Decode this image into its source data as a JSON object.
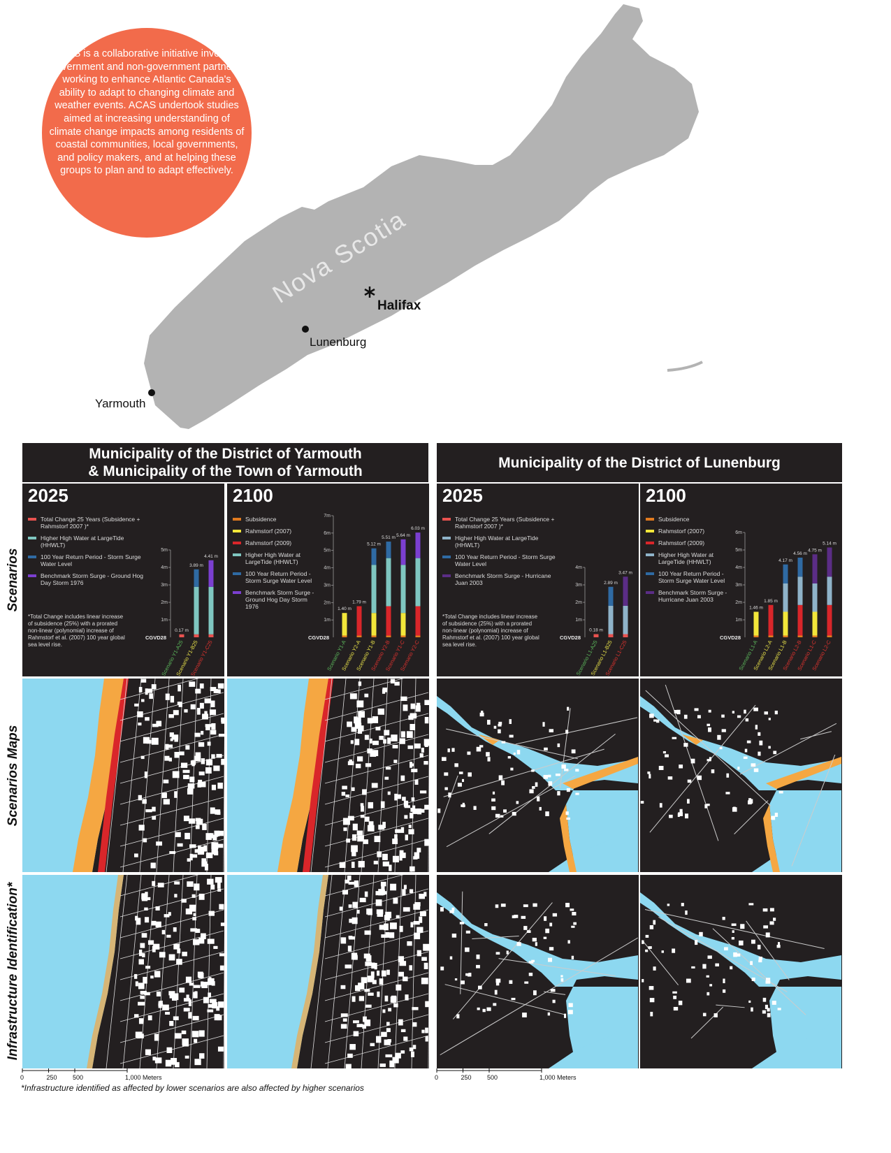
{
  "intro": "ACAS is a collaborative initiative involving government and non-government partners, working to enhance Atlantic Canada's ability to adapt to changing climate and weather events. ACAS undertook studies aimed at increasing understanding of climate change impacts among residents of coastal communities, local governments, and policy makers, and at helping these groups to plan and to adapt effectively.",
  "region_label": "Nova Scotia",
  "city_labels": [
    "Halifax",
    "Lunenburg",
    "Yarmouth"
  ],
  "sections": [
    "Municipality of the District of Yarmouth\n& Municipality of the Town of Yarmouth",
    "Municipality of the District of Lunenburg"
  ],
  "row_labels": [
    "Scenarios",
    "Scenarios Maps",
    "Infrastructure Identification*"
  ],
  "scale_ticks": [
    {
      "value": 0,
      "label": "0"
    },
    {
      "value": 250,
      "label": "250"
    },
    {
      "value": 500,
      "label": "500"
    },
    {
      "value": 1000,
      "label": "1,000 Meters"
    }
  ],
  "footnote": "*Infrastructure identified as affected by lower scenarios are also affected by higher scenarios",
  "chart_data": [
    {
      "type": "bar",
      "stacked": true,
      "title": "2025",
      "base_label": "CGVD28",
      "categories": [
        "Scenario Y1-A25",
        "Scenario Y1-B25",
        "Scenario Y1-C25"
      ],
      "category_colors": [
        "#5cb85c",
        "#e8e24a",
        "#e0332f"
      ],
      "series": [
        {
          "name": "Total Change 25 Years (Subsidence + Rahmstorf 2007 )*",
          "color": "#e8524f",
          "values": [
            0.17,
            0.17,
            0.17
          ]
        },
        {
          "name": "Higher High Water at LargeTide (HHWLT)",
          "color": "#7fc6c0",
          "values": [
            null,
            2.72,
            2.72
          ]
        },
        {
          "name": "100 Year Return Period - Storm Surge Water Level",
          "color": "#2f6aa3",
          "values": [
            null,
            1.0,
            null
          ]
        },
        {
          "name": "Benchmark Storm Surge - Ground Hog Day Storm 1976",
          "color": "#7b3fd0",
          "values": [
            null,
            null,
            1.52
          ]
        }
      ],
      "totals": [
        0.17,
        3.89,
        4.41
      ],
      "total_labels": [
        "0.17 m",
        "3.89 m",
        "4.41 m"
      ],
      "ylim": [
        0,
        5
      ],
      "yticks": [
        {
          "value": 1,
          "label": "1m"
        },
        {
          "value": 2,
          "label": "2m"
        },
        {
          "value": 3,
          "label": "3m"
        },
        {
          "value": 4,
          "label": "4m"
        },
        {
          "value": 5,
          "label": "5m"
        }
      ],
      "note": "*Total Change includes linear increase of subsidence (25%) with a prorated non-linear (polynomial) increase of Rahmstorf et al. (2007) 100 year global sea level rise."
    },
    {
      "type": "bar",
      "stacked": true,
      "title": "2100",
      "base_label": "CGVD28",
      "categories": [
        "Scenario Y1-A",
        "Scenario Y2-A",
        "Scenario Y1-B",
        "Scenario Y2-B",
        "Scenario Y1-C",
        "Scenario Y2-C"
      ],
      "category_colors": [
        "#5cb85c",
        "#e8e24a",
        "#e8e24a",
        "#e0332f",
        "#e0332f",
        "#e0332f"
      ],
      "series": [
        {
          "name": "Subsidence",
          "color": "#e07a1f",
          "values": [
            0.1,
            0.1,
            0.1,
            0.1,
            0.1,
            0.1
          ]
        },
        {
          "name": "Rahmstorf (2007)",
          "color": "#f2e63a",
          "values": [
            1.3,
            null,
            1.3,
            null,
            1.3,
            null
          ]
        },
        {
          "name": "Rahmstorf (2009)",
          "color": "#d9262a",
          "values": [
            null,
            1.69,
            null,
            1.69,
            null,
            1.69
          ]
        },
        {
          "name": "Higher High Water at LargeTide (HHWLT)",
          "color": "#7fc6c0",
          "values": [
            null,
            null,
            2.77,
            2.77,
            2.77,
            2.77
          ]
        },
        {
          "name": "100 Year Return Period - Storm Surge Water Level",
          "color": "#2f6aa3",
          "values": [
            null,
            null,
            0.95,
            0.95,
            null,
            null
          ]
        },
        {
          "name": "Benchmark Storm Surge - Ground Hog Day Storm 1976",
          "color": "#7b3fd0",
          "values": [
            null,
            null,
            null,
            null,
            1.47,
            1.47
          ]
        }
      ],
      "totals": [
        1.4,
        1.79,
        5.12,
        5.51,
        5.64,
        6.03
      ],
      "total_labels": [
        "1.40 m",
        "1.79 m",
        "5.12 m",
        "5.51 m",
        "5.64 m",
        "6.03 m"
      ],
      "ylim": [
        0,
        7
      ],
      "yticks": [
        {
          "value": 1,
          "label": "1m"
        },
        {
          "value": 2,
          "label": "2m"
        },
        {
          "value": 3,
          "label": "3m"
        },
        {
          "value": 4,
          "label": "4m"
        },
        {
          "value": 5,
          "label": "5m"
        },
        {
          "value": 6,
          "label": "6m"
        },
        {
          "value": 7,
          "label": "7m"
        }
      ]
    },
    {
      "type": "bar",
      "stacked": true,
      "title": "2025",
      "base_label": "CGVD28",
      "categories": [
        "Scenario L1-A25",
        "Scenario L1-B25",
        "Scenario L1-C25"
      ],
      "category_colors": [
        "#5cb85c",
        "#e8e24a",
        "#e0332f"
      ],
      "series": [
        {
          "name": "Total Change 25 Years (Subsidence + Rahmstorf 2007 )*",
          "color": "#e8524f",
          "values": [
            0.18,
            0.18,
            0.18
          ]
        },
        {
          "name": "Higher High Water at LargeTide (HHWLT)",
          "color": "#8fb3c9",
          "values": [
            null,
            1.62,
            1.62
          ]
        },
        {
          "name": "100 Year Return Period - Storm Surge Water Level",
          "color": "#2f6aa3",
          "values": [
            null,
            1.09,
            null
          ]
        },
        {
          "name": "Benchmark Storm Surge - Hurricane Juan 2003",
          "color": "#5b2d86",
          "values": [
            null,
            null,
            1.67
          ]
        }
      ],
      "totals": [
        0.18,
        2.89,
        3.47
      ],
      "total_labels": [
        "0.18 m",
        "2.89 m",
        "3.47 m"
      ],
      "ylim": [
        0,
        4
      ],
      "yticks": [
        {
          "value": 1,
          "label": "1m"
        },
        {
          "value": 2,
          "label": "2m"
        },
        {
          "value": 3,
          "label": "3m"
        },
        {
          "value": 4,
          "label": "4m"
        }
      ],
      "note": "*Total Change includes linear increase of subsidence (25%) with a prorated non-linear (polynomial) increase of Rahmstorf et al. (2007) 100 year global sea level rise."
    },
    {
      "type": "bar",
      "stacked": true,
      "title": "2100",
      "base_label": "CGVD28",
      "categories": [
        "Scenario L1-A",
        "Scenario L2-A",
        "Scenario L1-B",
        "Scenario L2-B",
        "Scenario L1-C",
        "Scenario L2-C"
      ],
      "category_colors": [
        "#5cb85c",
        "#e8e24a",
        "#e8e24a",
        "#e0332f",
        "#e0332f",
        "#e0332f"
      ],
      "series": [
        {
          "name": "Subsidence",
          "color": "#e07a1f",
          "values": [
            0.1,
            0.1,
            0.1,
            0.1,
            0.1,
            0.1
          ]
        },
        {
          "name": "Rahmstorf (2007)",
          "color": "#f2e63a",
          "values": [
            1.36,
            null,
            1.36,
            null,
            1.36,
            null
          ]
        },
        {
          "name": "Rahmstorf (2009)",
          "color": "#d9262a",
          "values": [
            null,
            1.75,
            null,
            1.75,
            null,
            1.75
          ]
        },
        {
          "name": "Higher High Water at LargeTide (HHWLT)",
          "color": "#8fb3c9",
          "values": [
            null,
            null,
            1.62,
            1.62,
            1.62,
            1.62
          ]
        },
        {
          "name": "100 Year Return Period - Storm Surge Water Level",
          "color": "#2f6aa3",
          "values": [
            null,
            null,
            1.09,
            1.09,
            null,
            null
          ]
        },
        {
          "name": "Benchmark Storm Surge - Hurricane Juan 2003",
          "color": "#5b2d86",
          "values": [
            null,
            null,
            null,
            null,
            1.67,
            1.67
          ]
        }
      ],
      "totals": [
        1.46,
        1.85,
        4.17,
        4.56,
        4.75,
        5.14
      ],
      "total_labels": [
        "1.46 m",
        "1.85 m",
        "4.17 m",
        "4.56 m",
        "4.75 m",
        "5.14 m"
      ],
      "ylim": [
        0,
        6
      ],
      "yticks": [
        {
          "value": 1,
          "label": "1m"
        },
        {
          "value": 2,
          "label": "2m"
        },
        {
          "value": 3,
          "label": "3m"
        },
        {
          "value": 4,
          "label": "4m"
        },
        {
          "value": 5,
          "label": "5m"
        },
        {
          "value": 6,
          "label": "6m"
        }
      ]
    }
  ]
}
